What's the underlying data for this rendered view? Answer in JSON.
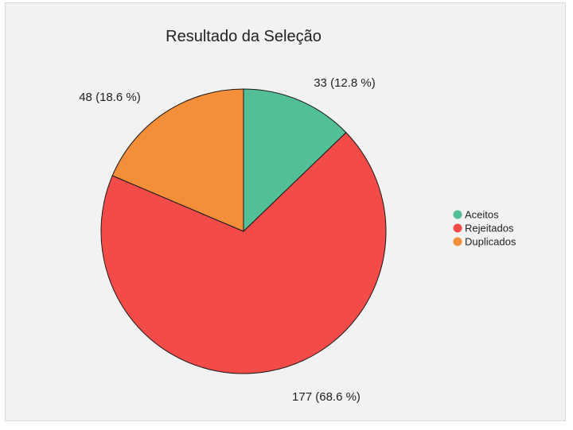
{
  "chart_data": {
    "type": "pie",
    "title": "Resultado da Seleção",
    "categories": [
      "Aceitos",
      "Rejeitados",
      "Duplicados"
    ],
    "values": [
      33,
      177,
      48
    ],
    "labels": [
      "33 (12.8 %)",
      "177 (68.6 %)",
      "48 (18.6 %)"
    ],
    "colors": [
      "#52bf96",
      "#f24b48",
      "#f48e38"
    ],
    "start_angle_deg": 0,
    "direction": "clockwise",
    "legend_position": "right"
  }
}
